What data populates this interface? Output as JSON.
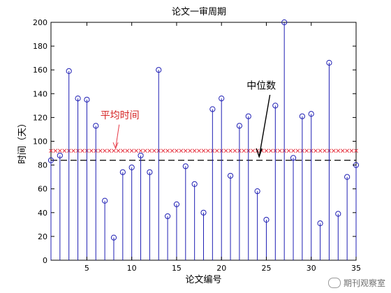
{
  "chart_data": {
    "type": "stem",
    "title": "论文一审周期",
    "xlabel": "论文编号",
    "ylabel": "时间（天）",
    "xlim": [
      1,
      35
    ],
    "ylim": [
      0,
      200
    ],
    "xticks": [
      5,
      10,
      15,
      20,
      25,
      30,
      35
    ],
    "yticks": [
      0,
      20,
      40,
      60,
      80,
      100,
      120,
      140,
      160,
      180,
      200
    ],
    "x": [
      1,
      2,
      3,
      4,
      5,
      6,
      7,
      8,
      9,
      10,
      11,
      12,
      13,
      14,
      15,
      16,
      17,
      18,
      19,
      20,
      21,
      22,
      23,
      24,
      25,
      26,
      27,
      28,
      29,
      30,
      31,
      32,
      33,
      34,
      35
    ],
    "values": [
      84,
      88,
      159,
      136,
      135,
      113,
      50,
      19,
      74,
      78,
      88,
      74,
      160,
      37,
      47,
      79,
      64,
      40,
      127,
      136,
      71,
      113,
      121,
      58,
      34,
      130,
      200,
      86,
      121,
      123,
      31,
      166,
      39,
      70,
      80
    ],
    "mean_line": {
      "value": 92,
      "label": "平均时间",
      "color": "#e63946"
    },
    "median_line": {
      "value": 84,
      "label": "中位数",
      "color": "#000000"
    },
    "stem_color": "#1f1fb4"
  },
  "watermark": {
    "text": "期刊观察室"
  }
}
